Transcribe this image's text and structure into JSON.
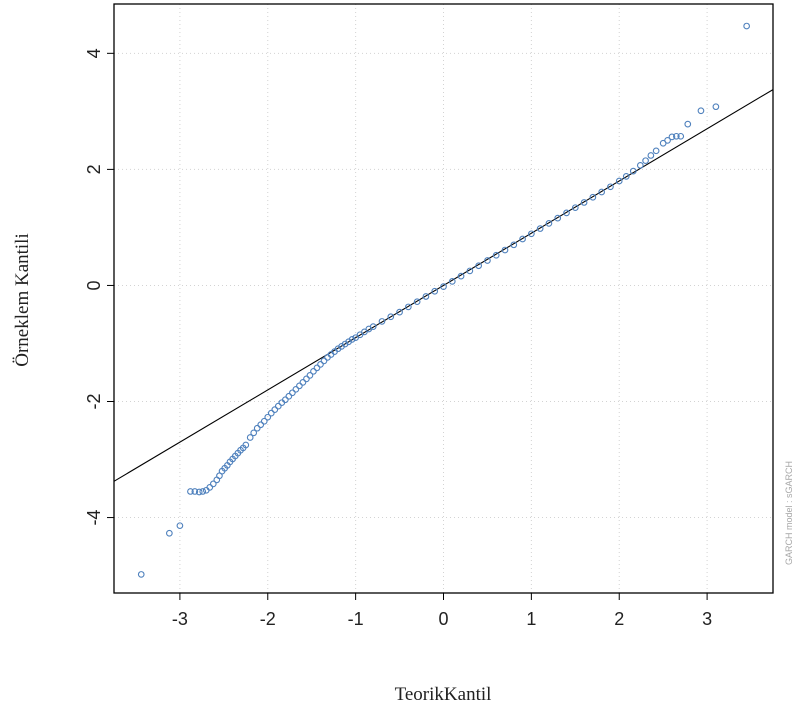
{
  "chart_data": {
    "type": "scatter",
    "title": "",
    "xlabel": "TeorikKantil",
    "ylabel": "Örneklem  Kantili",
    "side_note": "GARCH model : sGARCH",
    "xlim": [
      -3.75,
      3.75
    ],
    "ylim": [
      -5.3,
      4.85
    ],
    "x_ticks": [
      -3,
      -2,
      -1,
      0,
      1,
      2,
      3
    ],
    "y_ticks": [
      -4,
      -2,
      0,
      2,
      4
    ],
    "x_tick_labels": [
      "-3",
      "-2",
      "-1",
      "0",
      "1",
      "2",
      "3"
    ],
    "y_tick_labels": [
      "-4",
      "-2",
      "0",
      "2",
      "4"
    ],
    "grid": true,
    "reference_line": {
      "slope": 0.9,
      "intercept": 0.0
    },
    "series": [
      {
        "marker": "open-circle",
        "color": "#4f81bd",
        "points": [
          [
            -3.44,
            -4.98
          ],
          [
            -3.12,
            -4.27
          ],
          [
            -3.0,
            -4.14
          ],
          [
            -2.88,
            -3.55
          ],
          [
            -2.83,
            -3.55
          ],
          [
            -2.78,
            -3.56
          ],
          [
            -2.74,
            -3.55
          ],
          [
            -2.7,
            -3.53
          ],
          [
            -2.66,
            -3.48
          ],
          [
            -2.62,
            -3.42
          ],
          [
            -2.58,
            -3.35
          ],
          [
            -2.55,
            -3.28
          ],
          [
            -2.52,
            -3.2
          ],
          [
            -2.49,
            -3.15
          ],
          [
            -2.46,
            -3.1
          ],
          [
            -2.43,
            -3.04
          ],
          [
            -2.4,
            -2.99
          ],
          [
            -2.37,
            -2.94
          ],
          [
            -2.34,
            -2.89
          ],
          [
            -2.31,
            -2.84
          ],
          [
            -2.28,
            -2.8
          ],
          [
            -2.25,
            -2.75
          ],
          [
            -2.2,
            -2.62
          ],
          [
            -2.16,
            -2.54
          ],
          [
            -2.12,
            -2.46
          ],
          [
            -2.08,
            -2.4
          ],
          [
            -2.04,
            -2.34
          ],
          [
            -2.0,
            -2.27
          ],
          [
            -1.96,
            -2.2
          ],
          [
            -1.92,
            -2.14
          ],
          [
            -1.88,
            -2.08
          ],
          [
            -1.84,
            -2.02
          ],
          [
            -1.8,
            -1.97
          ],
          [
            -1.76,
            -1.91
          ],
          [
            -1.72,
            -1.85
          ],
          [
            -1.68,
            -1.79
          ],
          [
            -1.64,
            -1.73
          ],
          [
            -1.6,
            -1.67
          ],
          [
            -1.56,
            -1.61
          ],
          [
            -1.52,
            -1.55
          ],
          [
            -1.48,
            -1.48
          ],
          [
            -1.44,
            -1.42
          ],
          [
            -1.4,
            -1.36
          ],
          [
            -1.36,
            -1.3
          ],
          [
            -1.32,
            -1.24
          ],
          [
            -1.28,
            -1.19
          ],
          [
            -1.24,
            -1.14
          ],
          [
            -1.2,
            -1.09
          ],
          [
            -1.16,
            -1.05
          ],
          [
            -1.12,
            -1.01
          ],
          [
            -1.08,
            -0.97
          ],
          [
            -1.04,
            -0.93
          ],
          [
            -1.0,
            -0.9
          ],
          [
            -0.95,
            -0.85
          ],
          [
            -0.9,
            -0.8
          ],
          [
            -0.85,
            -0.75
          ],
          [
            -0.8,
            -0.71
          ],
          [
            -0.7,
            -0.62
          ],
          [
            -0.6,
            -0.54
          ],
          [
            -0.5,
            -0.46
          ],
          [
            -0.4,
            -0.37
          ],
          [
            -0.3,
            -0.28
          ],
          [
            -0.2,
            -0.19
          ],
          [
            -0.1,
            -0.1
          ],
          [
            0.0,
            -0.02
          ],
          [
            0.1,
            0.07
          ],
          [
            0.2,
            0.16
          ],
          [
            0.3,
            0.25
          ],
          [
            0.4,
            0.34
          ],
          [
            0.5,
            0.43
          ],
          [
            0.6,
            0.52
          ],
          [
            0.7,
            0.61
          ],
          [
            0.8,
            0.7
          ],
          [
            0.9,
            0.8
          ],
          [
            1.0,
            0.89
          ],
          [
            1.1,
            0.98
          ],
          [
            1.2,
            1.07
          ],
          [
            1.3,
            1.16
          ],
          [
            1.4,
            1.25
          ],
          [
            1.5,
            1.34
          ],
          [
            1.6,
            1.43
          ],
          [
            1.7,
            1.52
          ],
          [
            1.8,
            1.61
          ],
          [
            1.9,
            1.7
          ],
          [
            2.0,
            1.8
          ],
          [
            2.08,
            1.88
          ],
          [
            2.16,
            1.97
          ],
          [
            2.24,
            2.07
          ],
          [
            2.3,
            2.15
          ],
          [
            2.36,
            2.24
          ],
          [
            2.42,
            2.32
          ],
          [
            2.5,
            2.45
          ],
          [
            2.55,
            2.5
          ],
          [
            2.6,
            2.56
          ],
          [
            2.65,
            2.57
          ],
          [
            2.7,
            2.57
          ],
          [
            2.78,
            2.78
          ],
          [
            2.93,
            3.01
          ],
          [
            3.1,
            3.08
          ],
          [
            3.45,
            4.47
          ]
        ]
      }
    ]
  }
}
